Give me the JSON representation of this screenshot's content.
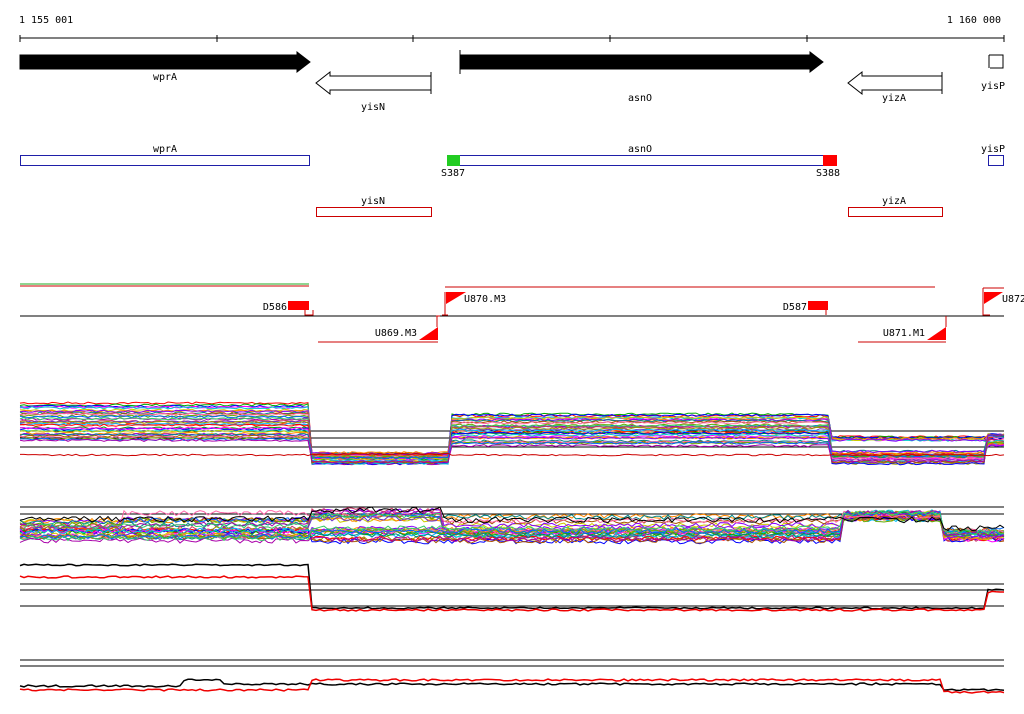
{
  "coordinate_labels": {
    "start": "1 155 001",
    "end": "1 160 000"
  },
  "colors": {
    "axis": "#000000",
    "annotated_gene": "#000000",
    "feature_forward": "#1f1fa8",
    "feature_reverse": "#cc0000",
    "start_site": "#22cc22",
    "end_site": "#ff0000",
    "tiling_track": "#cc0000"
  },
  "annotation_genes": [
    {
      "name": "wprA",
      "strand": "+",
      "filled": true
    },
    {
      "name": "yisN",
      "strand": "-",
      "filled": false
    },
    {
      "name": "asnO",
      "strand": "+",
      "filled": true
    },
    {
      "name": "yizA",
      "strand": "-",
      "filled": false
    },
    {
      "name": "yisP",
      "strand": "+",
      "filled": false
    }
  ],
  "forward_features": [
    {
      "name": "wprA"
    },
    {
      "name": "asnO"
    },
    {
      "name": "yisP"
    }
  ],
  "reverse_features": [
    {
      "name": "yisN"
    },
    {
      "name": "yizA"
    }
  ],
  "sites": [
    {
      "label": "S387",
      "kind": "start"
    },
    {
      "label": "S388",
      "kind": "end"
    }
  ],
  "segments": [
    {
      "label": "D586",
      "kind": "down"
    },
    {
      "label": "D587",
      "kind": "down"
    },
    {
      "label": "U869.M3",
      "kind": "up-reverse"
    },
    {
      "label": "U870.M3",
      "kind": "up-forward"
    },
    {
      "label": "U871.M1",
      "kind": "up-reverse"
    },
    {
      "label": "U872",
      "kind": "up-forward"
    }
  ],
  "expression_panels": [
    {
      "name": "forward-strand-expression"
    },
    {
      "name": "reverse-strand-expression"
    },
    {
      "name": "forward-strand-summary"
    },
    {
      "name": "reverse-strand-summary"
    }
  ]
}
